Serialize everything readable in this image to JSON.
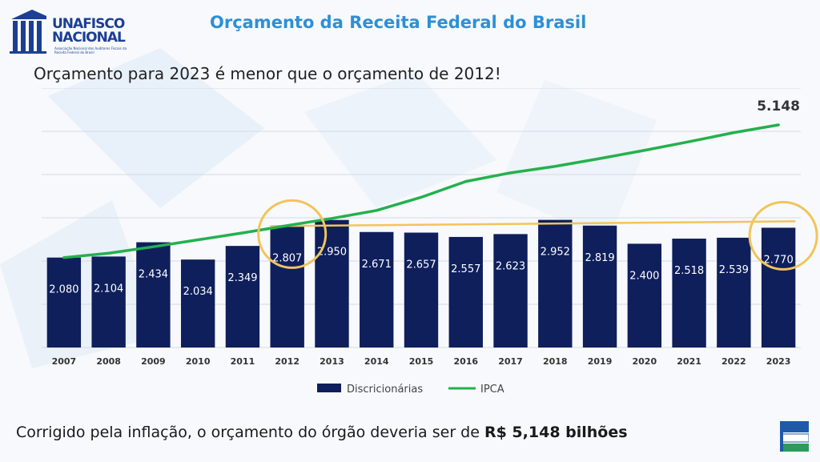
{
  "header": {
    "logo_line1": "UNAFISCO",
    "logo_line2": "NACIONAL",
    "logo_tagline": "Associação Nacional dos Auditores Fiscais da Receita Federal do Brasil",
    "title": "Orçamento da Receita Federal do Brasil"
  },
  "subtitle": "Orçamento para 2023 é menor que o orçamento de 2012!",
  "footer": {
    "text": "Corrigido pela inflação, o orçamento do órgão deveria ser de ",
    "highlight": "R$ 5,148 bilhões"
  },
  "colors": {
    "bar": "#0f1f5c",
    "ipca_line": "#23b14d",
    "reference_line": "#f2c45a",
    "title": "#2e8fd6"
  },
  "chart_data": {
    "type": "bar",
    "categories": [
      "2007",
      "2008",
      "2009",
      "2010",
      "2011",
      "2012",
      "2013",
      "2014",
      "2015",
      "2016",
      "2017",
      "2018",
      "2019",
      "2020",
      "2021",
      "2022",
      "2023"
    ],
    "series": [
      {
        "name": "Discricionárias",
        "type": "bar",
        "values": [
          2080,
          2104,
          2434,
          2034,
          2349,
          2807,
          2950,
          2671,
          2657,
          2557,
          2623,
          2952,
          2819,
          2400,
          2518,
          2539,
          2770
        ],
        "labels": [
          "2.080",
          "2.104",
          "2.434",
          "2.034",
          "2.349",
          "2.807",
          "2.950",
          "2.671",
          "2.657",
          "2.557",
          "2.623",
          "2.952",
          "2.819",
          "2.400",
          "2.518",
          "2.539",
          "2.770"
        ]
      },
      {
        "name": "IPCA",
        "type": "line",
        "values": [
          2080,
          2180,
          2330,
          2490,
          2650,
          2820,
          2985,
          3170,
          3475,
          3840,
          4040,
          4190,
          4370,
          4560,
          4760,
          4970,
          5148
        ]
      }
    ],
    "reference_line": {
      "value": 2807
    },
    "highlighted_categories": [
      "2012",
      "2023"
    ],
    "annotation": {
      "category": "2023",
      "label": "5.148"
    },
    "ylim": [
      0,
      6000
    ],
    "grid": true,
    "legend": "bottom"
  }
}
